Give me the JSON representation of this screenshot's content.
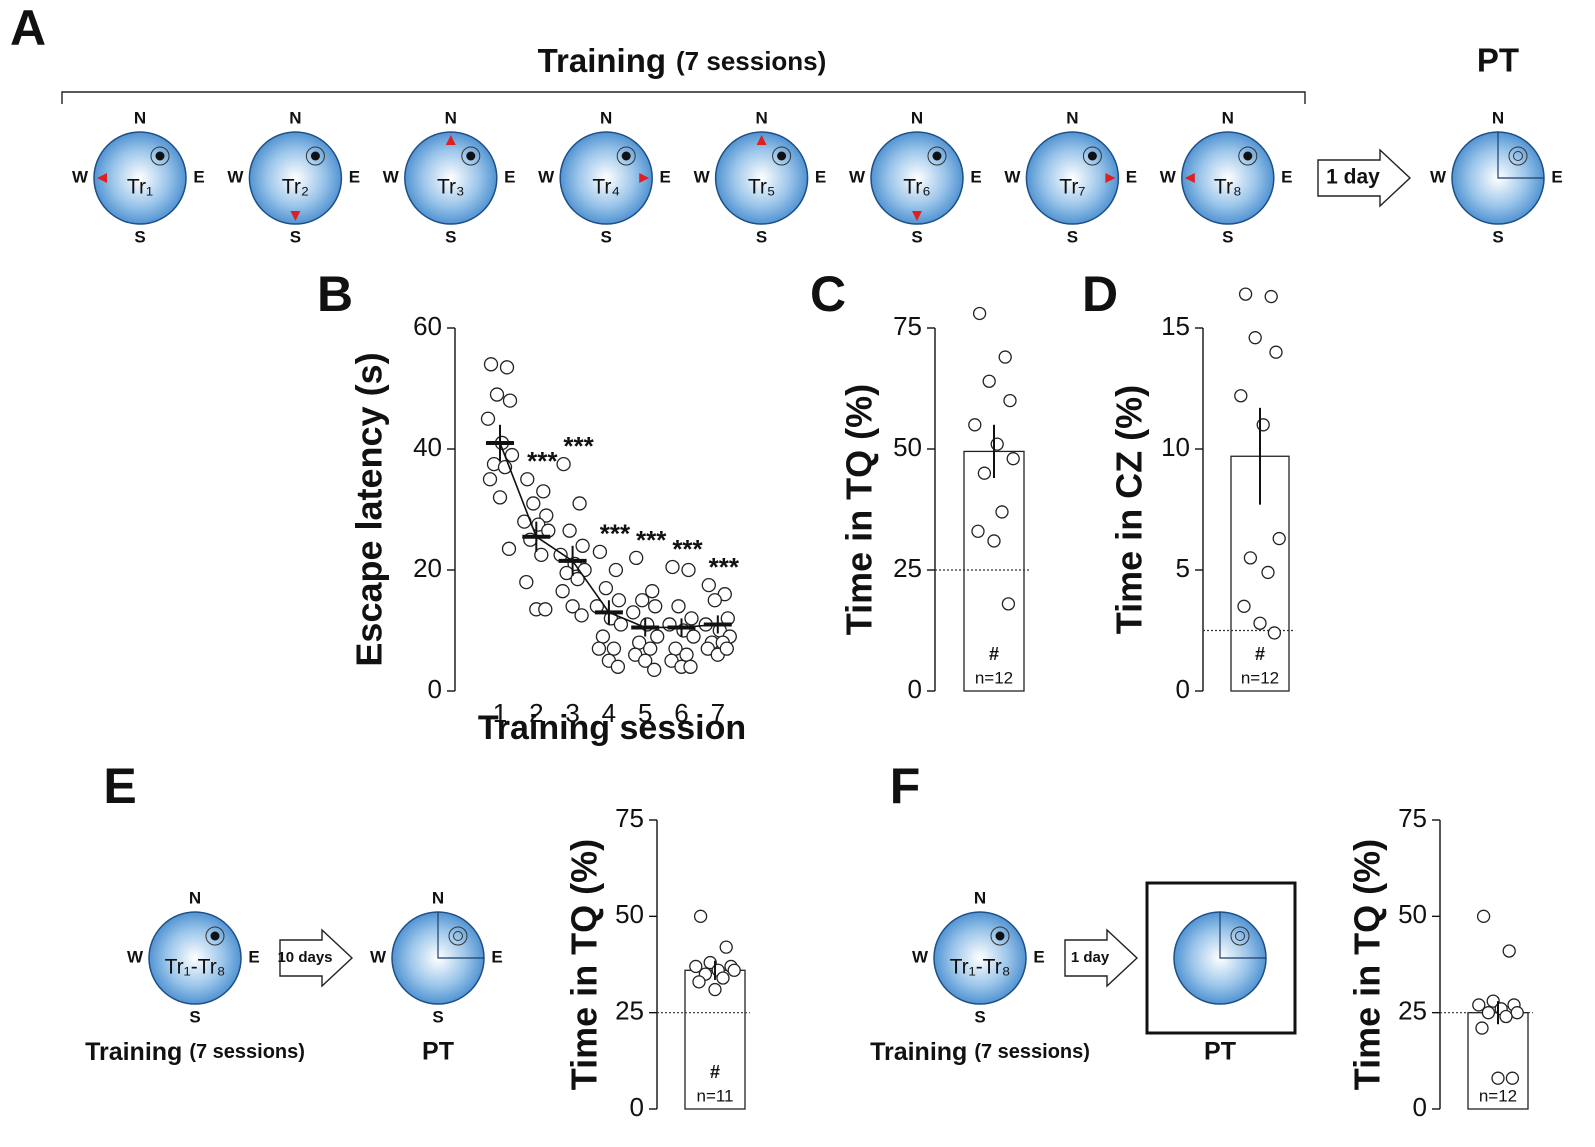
{
  "diagram": {
    "panel": "A",
    "title": "Training",
    "title_note": "(7 sessions)",
    "interval": "1 day",
    "test": "PT",
    "compass": [
      "N",
      "E",
      "S",
      "W"
    ],
    "trials": [
      "Tr₁",
      "Tr₂",
      "Tr₃",
      "Tr₄",
      "Tr₅",
      "Tr₆",
      "Tr₇",
      "Tr₈"
    ]
  },
  "panel_E": {
    "panel": "E",
    "trials": "Tr₁-Tr₈",
    "training": "Training",
    "training_note": "(7 sessions)",
    "interval": "10 days",
    "test": "PT"
  },
  "panel_F": {
    "panel": "F",
    "trials": "Tr₁-Tr₈",
    "training": "Training",
    "training_note": "(7 sessions)",
    "interval": "1 day",
    "test": "PT"
  },
  "chart_data": [
    {
      "type": "line",
      "panel": "B",
      "ylabel": "Escape latency (s)",
      "xlabel": "Training session",
      "categories": [
        "1",
        "2",
        "3",
        "4",
        "5",
        "6",
        "7"
      ],
      "values": [
        41,
        25.5,
        21.5,
        13,
        10.5,
        10.5,
        11
      ],
      "errors": [
        3,
        2.5,
        2.5,
        2,
        1.5,
        1.5,
        1.5
      ],
      "points": [
        [
          54,
          53.5,
          49,
          48,
          45,
          41,
          39,
          37.5,
          37,
          35,
          32,
          23.5
        ],
        [
          35,
          33,
          31,
          29,
          28,
          27.5,
          26.5,
          25,
          22.5,
          18,
          13.5,
          13.5
        ],
        [
          37.5,
          31,
          26.5,
          24,
          22.5,
          21,
          20,
          19.5,
          18.5,
          16.5,
          14,
          12.5
        ],
        [
          23,
          20,
          17,
          15,
          14,
          12,
          11,
          9,
          7,
          7,
          5,
          4
        ],
        [
          22,
          16.5,
          15,
          14,
          13,
          11,
          9,
          8,
          7,
          6,
          5,
          3.5
        ],
        [
          20.5,
          20,
          14,
          12,
          11,
          10,
          9,
          7,
          6,
          5,
          4,
          4
        ],
        [
          17.5,
          16,
          15,
          12,
          11,
          10,
          9,
          8,
          8,
          7,
          6,
          7
        ]
      ],
      "annotations": [
        null,
        "***",
        "***",
        "***",
        "***",
        "***",
        "***"
      ],
      "ylim": [
        0,
        60
      ],
      "yticks": [
        0,
        20,
        40,
        60
      ]
    },
    {
      "type": "bar",
      "panel": "C",
      "ylabel": "Time in TQ (%)",
      "values": [
        49.5
      ],
      "errors": [
        5.5
      ],
      "points": [
        [
          78,
          69,
          64,
          60,
          55,
          51,
          48,
          45,
          37,
          33,
          31,
          18
        ]
      ],
      "reference_line": 25,
      "annotation": "#",
      "n_label": "n=12",
      "ylim": [
        0,
        75
      ],
      "yticks": [
        0,
        25,
        50,
        75
      ]
    },
    {
      "type": "bar",
      "panel": "D",
      "ylabel": "Time in CZ (%)",
      "values": [
        9.7
      ],
      "errors": [
        2
      ],
      "points": [
        [
          16.4,
          16.3,
          14.6,
          14,
          12.2,
          11,
          6.3,
          5.5,
          4.9,
          3.5,
          2.8,
          2.4
        ]
      ],
      "reference_line": 2.5,
      "annotation": "#",
      "n_label": "n=12",
      "ylim": [
        0,
        15
      ],
      "yticks": [
        0,
        5,
        10,
        15
      ]
    },
    {
      "type": "bar",
      "ylabel": "Time in TQ (%)",
      "values": [
        36
      ],
      "errors": [
        2.5
      ],
      "points": [
        [
          50,
          42,
          38,
          37,
          37,
          36,
          36,
          35,
          34,
          33,
          31
        ]
      ],
      "reference_line": 25,
      "annotation": "#",
      "n_label": "n=11",
      "ylim": [
        0,
        75
      ],
      "yticks": [
        0,
        25,
        50,
        75
      ]
    },
    {
      "type": "bar",
      "ylabel": "Time in TQ (%)",
      "values": [
        25
      ],
      "errors": [
        3
      ],
      "points": [
        [
          50,
          41,
          28,
          27,
          27,
          26,
          25,
          25,
          24,
          21,
          8,
          8
        ]
      ],
      "reference_line": 25,
      "n_label": "n=12",
      "ylim": [
        0,
        75
      ],
      "yticks": [
        0,
        25,
        50,
        75
      ]
    }
  ]
}
